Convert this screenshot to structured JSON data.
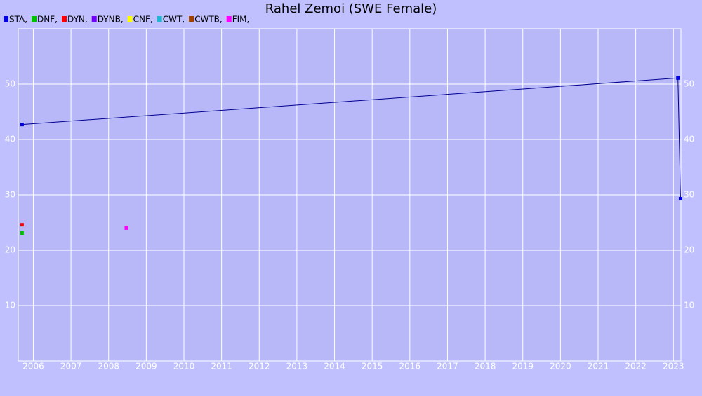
{
  "chart_data": {
    "type": "scatter",
    "title": "Rahel Zemoi (SWE Female)",
    "xlim": [
      2005.6,
      2023.2
    ],
    "xticks": [
      2006,
      2007,
      2008,
      2009,
      2010,
      2011,
      2012,
      2013,
      2014,
      2015,
      2016,
      2017,
      2018,
      2019,
      2020,
      2021,
      2022,
      2023
    ],
    "ylim": [
      0,
      60
    ],
    "yticks": [
      10,
      20,
      30,
      40,
      50
    ],
    "grid": true,
    "line_color": "#000090",
    "series": [
      {
        "name": "STA,",
        "color": "#0000e0",
        "x": [
          2005.7,
          2023.12,
          2023.19
        ],
        "values": [
          42.7,
          51.1,
          29.3
        ]
      },
      {
        "name": "DNF,",
        "color": "#00c000",
        "x": [
          2005.7
        ],
        "values": [
          23.1
        ]
      },
      {
        "name": "DYN,",
        "color": "#ff0000",
        "x": [
          2005.7
        ],
        "values": [
          24.6
        ]
      },
      {
        "name": "DYNB,",
        "color": "#7000ff",
        "x": [],
        "values": []
      },
      {
        "name": "CNF,",
        "color": "#ffff00",
        "x": [],
        "values": []
      },
      {
        "name": "CWT,",
        "color": "#20b8d0",
        "x": [],
        "values": []
      },
      {
        "name": "CWTB,",
        "color": "#a04000",
        "x": [],
        "values": []
      },
      {
        "name": "FIM,",
        "color": "#ff00ff",
        "x": [
          2008.47
        ],
        "values": [
          24.0
        ]
      }
    ]
  }
}
